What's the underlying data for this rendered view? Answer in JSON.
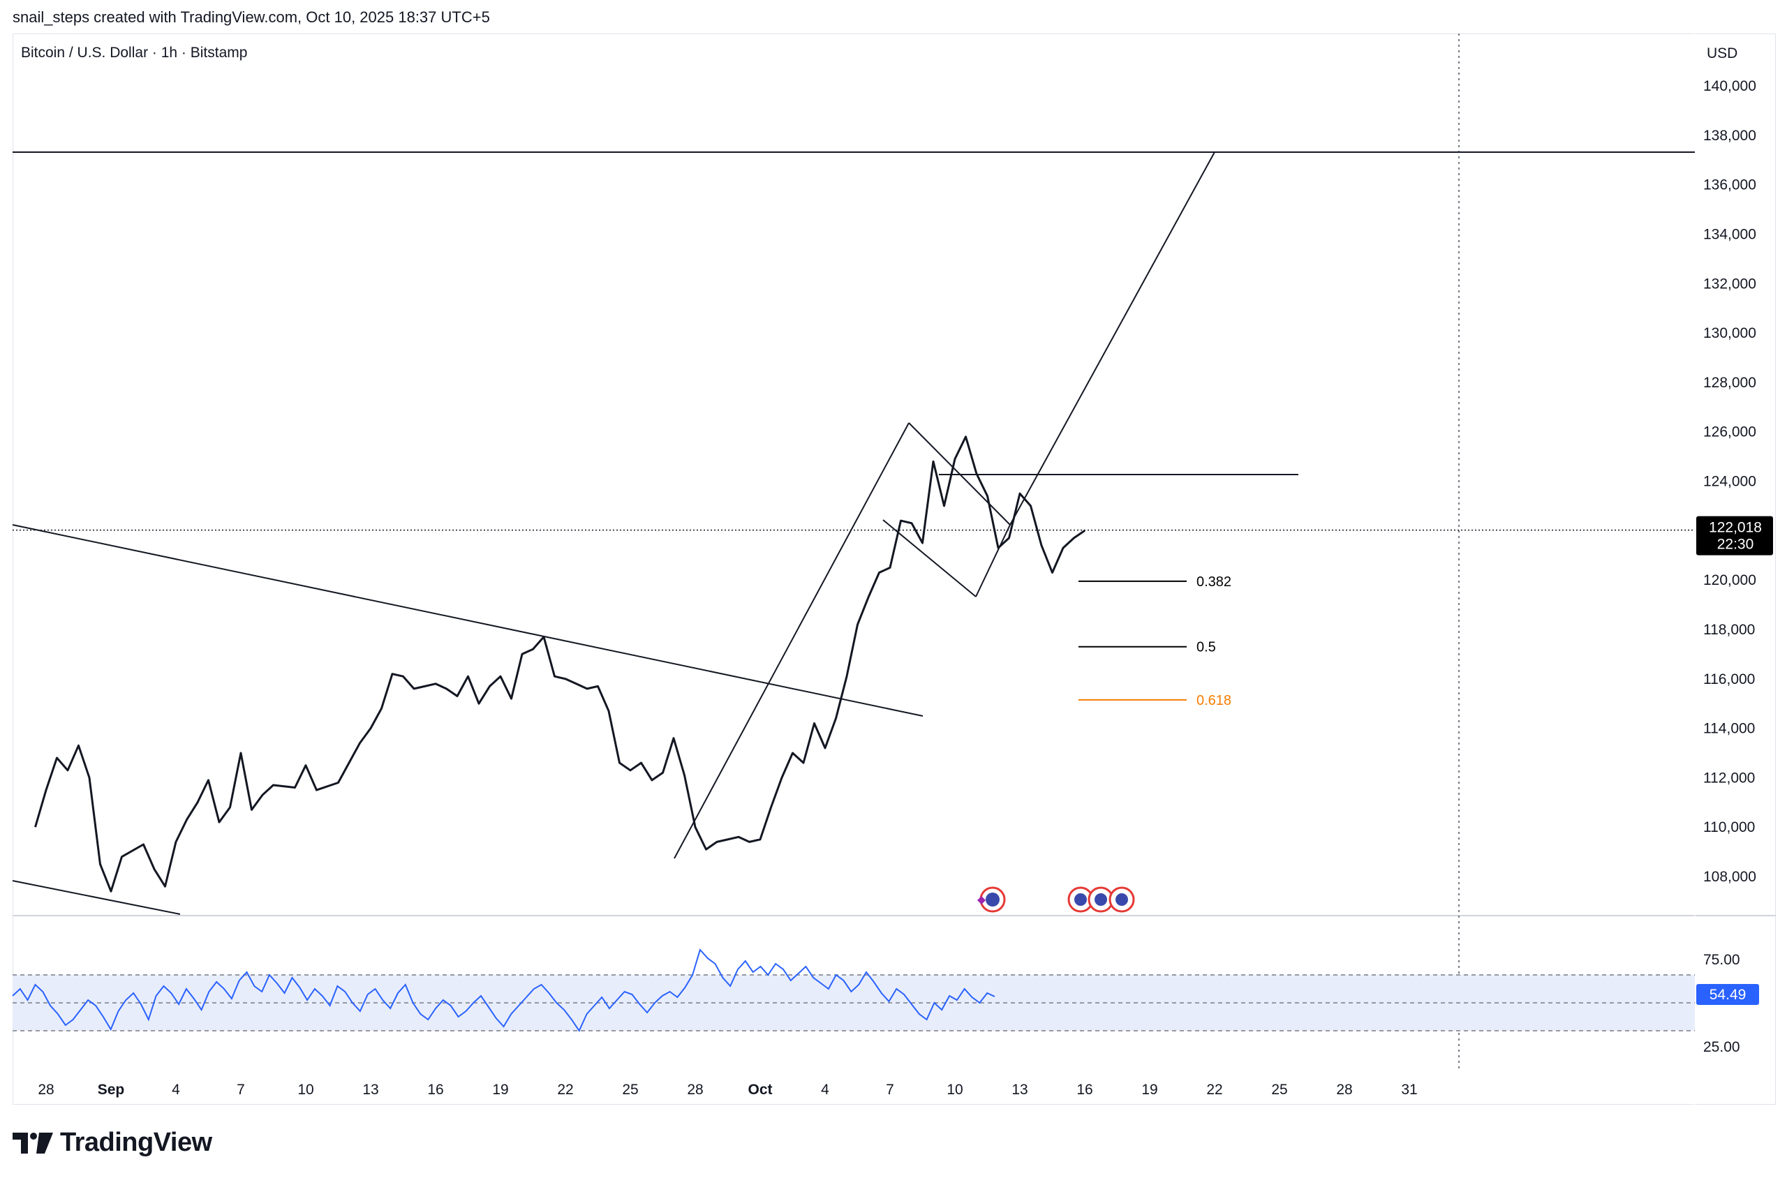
{
  "header": {
    "author_line": "snail_steps created with TradingView.com, Oct 10, 2025 18:37 UTC+5"
  },
  "symbol": {
    "title": "Bitcoin / U.S. Dollar · 1h · Bitstamp",
    "currency": "USD"
  },
  "last_price": {
    "value": 122018,
    "label": "122,018",
    "countdown": "22:30",
    "bg_color": "#000000"
  },
  "rsi": {
    "value_label": "54.49",
    "upper_label": "75.00",
    "lower_label": "25.00",
    "line_color": "#2962ff",
    "band_color": "#e8edfc"
  },
  "fib_levels": [
    {
      "ratio": "0.382",
      "price": 119950,
      "color": "#000000"
    },
    {
      "ratio": "0.5",
      "price": 117300,
      "color": "#000000"
    },
    {
      "ratio": "0.618",
      "price": 115150,
      "color": "#f57c00"
    }
  ],
  "chart_data": {
    "type": "line",
    "title": "Bitcoin / U.S. Dollar · 1h · Bitstamp",
    "ylabel": "USD",
    "ylim": [
      106500,
      141500
    ],
    "y_ticks": [
      "140,000",
      "138,000",
      "136,000",
      "134,000",
      "132,000",
      "130,000",
      "128,000",
      "126,000",
      "124,000",
      "122,000",
      "120,000",
      "118,000",
      "116,000",
      "114,000",
      "112,000",
      "110,000",
      "108,000"
    ],
    "x_ticks": [
      "28",
      "Sep",
      "4",
      "7",
      "10",
      "13",
      "16",
      "19",
      "22",
      "25",
      "28",
      "Oct",
      "4",
      "7",
      "10",
      "13",
      "16",
      "19",
      "22",
      "25",
      "28",
      "31"
    ],
    "series": [
      {
        "values_day_price": [
          [
            0,
            110000
          ],
          [
            0.5,
            111500
          ],
          [
            1,
            112800
          ],
          [
            1.5,
            112300
          ],
          [
            2,
            113300
          ],
          [
            2.5,
            112000
          ],
          [
            3,
            108500
          ],
          [
            3.5,
            107400
          ],
          [
            4,
            108800
          ],
          [
            5,
            109300
          ],
          [
            5.5,
            108300
          ],
          [
            6,
            107600
          ],
          [
            6.5,
            109400
          ],
          [
            7,
            110300
          ],
          [
            7.5,
            111000
          ],
          [
            8,
            111900
          ],
          [
            8.5,
            110200
          ],
          [
            9,
            110800
          ],
          [
            9.5,
            113000
          ],
          [
            10,
            110700
          ],
          [
            10.5,
            111300
          ],
          [
            11,
            111700
          ],
          [
            12,
            111600
          ],
          [
            12.5,
            112500
          ],
          [
            13,
            111500
          ],
          [
            14,
            111800
          ],
          [
            14.5,
            112600
          ],
          [
            15,
            113400
          ],
          [
            15.5,
            114000
          ],
          [
            16,
            114800
          ],
          [
            16.5,
            116200
          ],
          [
            17,
            116100
          ],
          [
            17.5,
            115600
          ],
          [
            18,
            115700
          ],
          [
            18.5,
            115800
          ],
          [
            19,
            115600
          ],
          [
            19.5,
            115300
          ],
          [
            20,
            116100
          ],
          [
            20.5,
            115000
          ],
          [
            21,
            115700
          ],
          [
            21.5,
            116100
          ],
          [
            22,
            115200
          ],
          [
            22.5,
            117000
          ],
          [
            23,
            117200
          ],
          [
            23.5,
            117700
          ],
          [
            24,
            116100
          ],
          [
            24.5,
            116000
          ],
          [
            25,
            115800
          ],
          [
            25.5,
            115600
          ],
          [
            26,
            115700
          ],
          [
            26.5,
            114700
          ],
          [
            27,
            112600
          ],
          [
            27.5,
            112300
          ],
          [
            28,
            112600
          ],
          [
            28.5,
            111900
          ],
          [
            29,
            112200
          ],
          [
            29.5,
            113600
          ],
          [
            30,
            112100
          ],
          [
            30.5,
            110000
          ],
          [
            31,
            109100
          ],
          [
            31.5,
            109400
          ],
          [
            32,
            109500
          ],
          [
            32.5,
            109600
          ],
          [
            33,
            109400
          ],
          [
            33.5,
            109500
          ],
          [
            34,
            110800
          ],
          [
            34.5,
            112000
          ],
          [
            35,
            113000
          ],
          [
            35.5,
            112600
          ],
          [
            36,
            114200
          ],
          [
            36.5,
            113200
          ],
          [
            37,
            114400
          ],
          [
            37.5,
            116100
          ],
          [
            38,
            118200
          ],
          [
            38.5,
            119300
          ],
          [
            39,
            120300
          ],
          [
            39.5,
            120500
          ],
          [
            40,
            122400
          ],
          [
            40.5,
            122300
          ],
          [
            41,
            121500
          ],
          [
            41.5,
            124800
          ],
          [
            42,
            123000
          ],
          [
            42.5,
            124900
          ],
          [
            43,
            125800
          ],
          [
            43.5,
            124300
          ],
          [
            44,
            123400
          ],
          [
            44.5,
            121300
          ],
          [
            45,
            121700
          ],
          [
            45.5,
            123500
          ],
          [
            46,
            123000
          ],
          [
            46.5,
            121400
          ],
          [
            47,
            120300
          ],
          [
            47.5,
            121300
          ],
          [
            48,
            121700
          ],
          [
            48.5,
            122000
          ]
        ]
      }
    ],
    "rsi_ylim": [
      15,
      95
    ],
    "rsi_values": [
      55,
      60,
      52,
      63,
      58,
      48,
      42,
      34,
      38,
      45,
      52,
      48,
      40,
      31,
      44,
      52,
      57,
      49,
      38,
      55,
      62,
      57,
      49,
      60,
      53,
      45,
      58,
      65,
      60,
      53,
      66,
      72,
      62,
      58,
      70,
      64,
      57,
      68,
      61,
      52,
      60,
      55,
      48,
      62,
      58,
      50,
      44,
      56,
      60,
      52,
      46,
      57,
      63,
      50,
      42,
      38,
      46,
      52,
      48,
      40,
      44,
      50,
      55,
      47,
      39,
      33,
      42,
      48,
      54,
      60,
      63,
      57,
      50,
      45,
      38,
      30,
      42,
      48,
      54,
      46,
      52,
      58,
      56,
      49,
      43,
      50,
      55,
      58,
      54,
      61,
      70,
      88,
      82,
      78,
      68,
      62,
      74,
      80,
      72,
      76,
      70,
      78,
      74,
      66,
      71,
      76,
      68,
      64,
      60,
      70,
      66,
      58,
      63,
      72,
      65,
      57,
      51,
      60,
      56,
      49,
      42,
      38,
      50,
      45,
      55,
      52,
      60,
      54,
      50,
      57,
      54.49
    ]
  }
}
